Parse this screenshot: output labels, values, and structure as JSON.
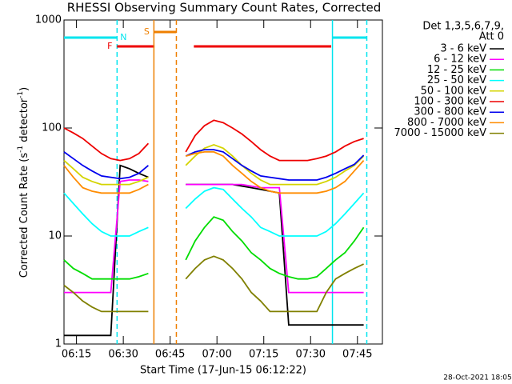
{
  "chart_data": {
    "type": "line",
    "title": "RHESSI Observing Summary Count Rates, Corrected",
    "xlabel": "Start Time (17-Jun-15 06:12:22)",
    "ylabel": [
      "Corrected Count Rate (s",
      "-1",
      " detector",
      "-1",
      ")"
    ],
    "footer": "28-Oct-2021 18:05",
    "legend_header": [
      "Det 1,3,5,6,7,9,",
      "Att 0"
    ],
    "log_y": true,
    "xlim": [
      371,
      473
    ],
    "xticks": [
      {
        "value": 375,
        "label": "06:15"
      },
      {
        "value": 390,
        "label": "06:30"
      },
      {
        "value": 405,
        "label": "06:45"
      },
      {
        "value": 420,
        "label": "07:00"
      },
      {
        "value": 435,
        "label": "07:15"
      },
      {
        "value": 450,
        "label": "07:30"
      },
      {
        "value": 465,
        "label": "07:45"
      }
    ],
    "ylim": [
      1,
      1000
    ],
    "yticks": [
      1,
      10,
      100,
      1000
    ],
    "flags": [
      {
        "label": "N",
        "color": "#00e5ee",
        "marker_lines": true,
        "intervals": [
          [
            371,
            388
          ],
          [
            457,
            468
          ]
        ]
      },
      {
        "label": "F",
        "color": "#ee0000",
        "marker_lines": false,
        "intervals": [
          [
            388,
            400
          ],
          [
            412.6,
            456.6
          ]
        ]
      },
      {
        "label": "S",
        "color": "#ee7f00",
        "marker_lines": true,
        "intervals": [
          [
            399.8,
            407
          ]
        ]
      }
    ],
    "x": [
      371,
      374,
      377,
      380,
      383,
      386,
      389,
      392,
      395,
      398,
      401,
      404,
      407,
      410,
      413,
      416,
      419,
      422,
      425,
      428,
      431,
      434,
      437,
      440,
      443,
      446,
      449,
      452,
      455,
      458,
      461,
      464,
      467
    ],
    "series": [
      {
        "name": "3 - 6 keV",
        "color": "#000000",
        "values": [
          1.2,
          1.2,
          1.2,
          1.2,
          1.2,
          1.2,
          45,
          42,
          38,
          35,
          null,
          null,
          null,
          30,
          30,
          30,
          30,
          30,
          30,
          29,
          28,
          27,
          26,
          25,
          1.5,
          1.5,
          1.5,
          1.5,
          1.5,
          1.5,
          1.5,
          1.5,
          1.5
        ]
      },
      {
        "name": "6 - 12 keV",
        "color": "#ff00ff",
        "values": [
          3,
          3,
          3,
          3,
          3,
          3,
          32,
          33,
          33,
          32,
          null,
          null,
          null,
          30,
          30,
          30,
          30,
          30,
          30,
          30,
          29,
          28,
          28,
          28,
          3,
          3,
          3,
          3,
          3,
          3,
          3,
          3,
          3
        ]
      },
      {
        "name": "12 - 25 keV",
        "color": "#00dd00",
        "values": [
          6,
          5,
          4.5,
          4,
          4,
          4,
          4,
          4,
          4.2,
          4.5,
          null,
          null,
          null,
          6,
          9,
          12,
          15,
          14,
          11,
          9,
          7,
          6,
          5,
          4.5,
          4.2,
          4,
          4,
          4.2,
          5,
          6,
          7,
          9,
          12
        ]
      },
      {
        "name": "25 - 50 keV",
        "color": "#00ffff",
        "values": [
          25,
          20,
          16,
          13,
          11,
          10,
          10,
          10,
          11,
          12,
          null,
          null,
          null,
          18,
          22,
          26,
          28,
          27,
          22,
          18,
          15,
          12,
          11,
          10,
          10,
          10,
          10,
          10,
          11,
          13,
          16,
          20,
          25
        ]
      },
      {
        "name": "50 - 100 keV",
        "color": "#d4d400",
        "values": [
          50,
          42,
          35,
          32,
          30,
          30,
          30,
          30,
          32,
          35,
          null,
          null,
          null,
          45,
          55,
          65,
          70,
          65,
          55,
          45,
          38,
          33,
          30,
          30,
          30,
          30,
          30,
          30,
          32,
          35,
          40,
          45,
          55
        ]
      },
      {
        "name": "100 - 300 keV",
        "color": "#ee0000",
        "values": [
          100,
          90,
          80,
          68,
          58,
          52,
          50,
          52,
          58,
          72,
          null,
          null,
          null,
          60,
          85,
          105,
          118,
          112,
          100,
          88,
          75,
          63,
          55,
          50,
          50,
          50,
          50,
          52,
          55,
          60,
          68,
          75,
          80
        ]
      },
      {
        "name": "300 - 800 keV",
        "color": "#0000ee",
        "values": [
          60,
          52,
          45,
          40,
          36,
          35,
          34,
          35,
          38,
          45,
          null,
          null,
          null,
          55,
          60,
          63,
          63,
          60,
          52,
          45,
          40,
          36,
          35,
          34,
          33,
          33,
          33,
          33,
          35,
          38,
          42,
          46,
          56
        ]
      },
      {
        "name": "800 - 7000 keV",
        "color": "#ff8c00",
        "values": [
          45,
          35,
          28,
          26,
          25,
          25,
          25,
          25,
          27,
          30,
          null,
          null,
          null,
          55,
          58,
          60,
          60,
          55,
          45,
          38,
          32,
          28,
          26,
          25,
          25,
          25,
          25,
          25,
          26,
          28,
          32,
          40,
          50
        ]
      },
      {
        "name": "7000 - 15000 keV",
        "color": "#808000",
        "values": [
          3.5,
          3,
          2.5,
          2.2,
          2,
          2,
          2,
          2,
          2,
          2,
          null,
          null,
          null,
          4,
          5,
          6,
          6.5,
          6,
          5,
          4,
          3,
          2.5,
          2,
          2,
          2,
          2,
          2,
          2,
          3,
          4,
          4.5,
          5,
          5.5
        ]
      }
    ]
  }
}
